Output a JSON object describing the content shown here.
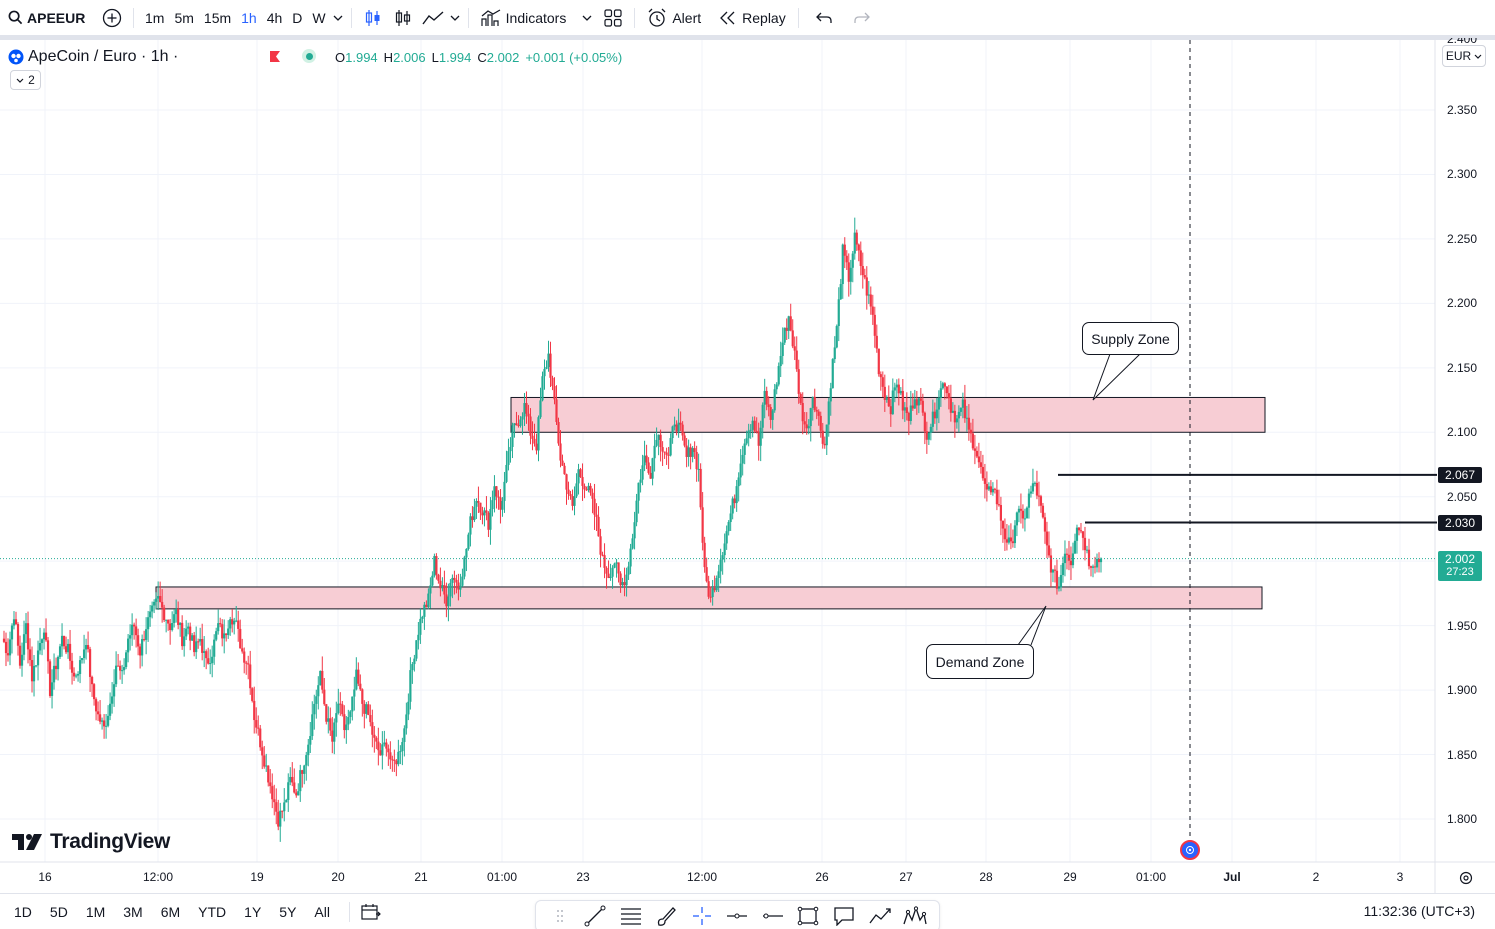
{
  "toolbar": {
    "symbol": "APEEUR",
    "timeframes": [
      "1m",
      "5m",
      "15m",
      "1h",
      "4h",
      "D",
      "W"
    ],
    "active_timeframe": "1h",
    "indicators_label": "Indicators",
    "alert_label": "Alert",
    "replay_label": "Replay"
  },
  "legend": {
    "title": "ApeCoin / Euro · 1h ·",
    "open_k": "O",
    "open": "1.994",
    "high_k": "H",
    "high": "2.006",
    "low_k": "L",
    "low": "1.994",
    "close_k": "C",
    "close": "2.002",
    "change": "+0.001 (+0.05%)",
    "collapsed_count": "2"
  },
  "currency": "EUR",
  "price_axis": {
    "top_partial": "2.400",
    "ticks": [
      "2.350",
      "2.300",
      "2.250",
      "2.200",
      "2.150",
      "2.100",
      "2.050",
      "1.950",
      "1.900",
      "1.850",
      "1.800"
    ],
    "tags": {
      "level_a": "2.067",
      "level_b": "2.030"
    },
    "last_price": "2.002",
    "countdown": "27:23"
  },
  "time_axis": [
    "16",
    "12:00",
    "19",
    "20",
    "21",
    "01:00",
    "23",
    "12:00",
    "26",
    "27",
    "28",
    "29",
    "01:00",
    "Jul",
    "2",
    "3"
  ],
  "annotations": {
    "supply": "Supply Zone",
    "demand": "Demand Zone"
  },
  "brand": "TradingView",
  "bottom": {
    "ranges": [
      "1D",
      "5D",
      "1M",
      "3M",
      "6M",
      "YTD",
      "1Y",
      "5Y",
      "All"
    ],
    "clock": "11:32:36 (UTC+3)"
  },
  "colors": {
    "up": "#22ab94",
    "down": "#f23645",
    "zone_fill": "#f7cdd4",
    "accent": "#2962ff"
  },
  "chart_data": {
    "type": "candlestick",
    "title": "ApeCoin / Euro · 1h",
    "ylim": [
      1.78,
      2.41
    ],
    "horizontal_levels": [
      2.067,
      2.03
    ],
    "last": 2.002,
    "zones": [
      {
        "name": "Supply Zone",
        "low": 2.1,
        "high": 2.127
      },
      {
        "name": "Demand Zone",
        "low": 1.963,
        "high": 1.98
      }
    ],
    "ohlc_path": [
      1.94,
      1.93,
      1.96,
      1.92,
      1.95,
      1.91,
      1.93,
      1.95,
      1.9,
      1.92,
      1.94,
      1.93,
      1.91,
      1.92,
      1.94,
      1.9,
      1.88,
      1.87,
      1.89,
      1.92,
      1.91,
      1.94,
      1.95,
      1.93,
      1.95,
      1.96,
      1.97,
      1.96,
      1.95,
      1.96,
      1.94,
      1.95,
      1.93,
      1.94,
      1.92,
      1.93,
      1.95,
      1.94,
      1.96,
      1.95,
      1.93,
      1.92,
      1.88,
      1.86,
      1.84,
      1.82,
      1.8,
      1.81,
      1.83,
      1.82,
      1.84,
      1.86,
      1.89,
      1.91,
      1.88,
      1.86,
      1.89,
      1.87,
      1.88,
      1.91,
      1.89,
      1.88,
      1.86,
      1.85,
      1.86,
      1.84,
      1.85,
      1.87,
      1.91,
      1.94,
      1.96,
      1.97,
      2.0,
      1.98,
      1.97,
      1.99,
      1.98,
      2.0,
      2.03,
      2.05,
      2.04,
      2.03,
      2.06,
      2.04,
      2.07,
      2.1,
      2.11,
      2.12,
      2.1,
      2.09,
      2.14,
      2.16,
      2.12,
      2.08,
      2.06,
      2.04,
      2.07,
      2.06,
      2.05,
      2.03,
      2.0,
      1.99,
      2.0,
      1.98,
      1.99,
      2.02,
      2.06,
      2.08,
      2.07,
      2.1,
      2.09,
      2.08,
      2.11,
      2.1,
      2.08,
      2.09,
      2.07,
      1.99,
      1.97,
      1.99,
      2.01,
      2.03,
      2.05,
      2.08,
      2.1,
      2.11,
      2.09,
      2.13,
      2.11,
      2.14,
      2.17,
      2.19,
      2.16,
      2.12,
      2.1,
      2.13,
      2.11,
      2.09,
      2.14,
      2.18,
      2.24,
      2.22,
      2.25,
      2.23,
      2.21,
      2.19,
      2.15,
      2.13,
      2.12,
      2.14,
      2.12,
      2.11,
      2.13,
      2.12,
      2.1,
      2.11,
      2.13,
      2.14,
      2.12,
      2.11,
      2.12,
      2.1,
      2.09,
      2.07,
      2.05,
      2.06,
      2.04,
      2.02,
      2.01,
      2.04,
      2.03,
      2.05,
      2.06,
      2.04,
      2.01,
      1.99,
      1.98,
      2.01,
      2.0,
      2.03,
      2.02,
      2.0,
      2.0,
      2.002
    ]
  }
}
